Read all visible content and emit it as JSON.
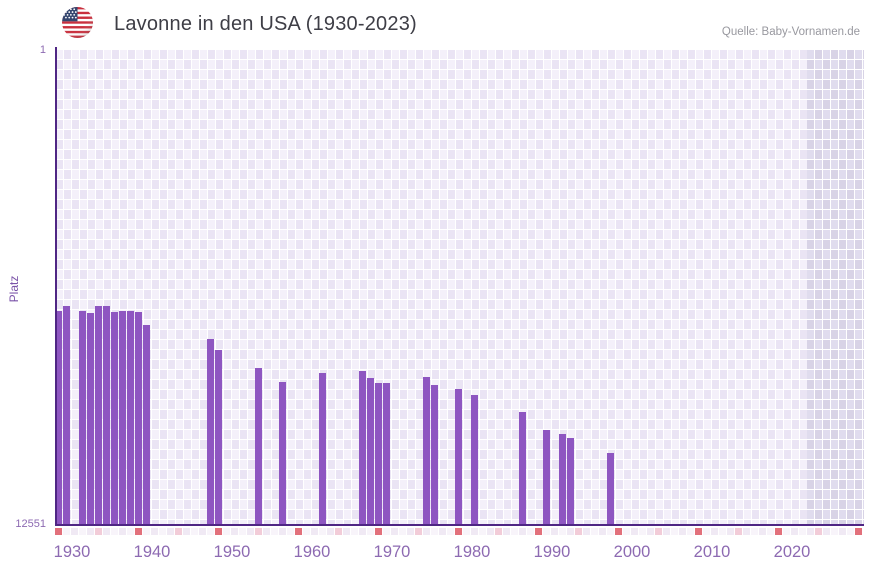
{
  "header": {
    "title": "Lavonne in den USA (1930-2023)",
    "source": "Quelle: Baby-Vornamen.de",
    "flag_icon": "us-flag-icon"
  },
  "chart_data": {
    "type": "bar",
    "title": "Lavonne in den USA (1930-2023)",
    "xlabel": "",
    "ylabel": "Platz",
    "y_axis": {
      "top_tick_label": "1",
      "bottom_tick_label": "12551",
      "min_rank": 1,
      "max_rank": 12551,
      "inverted": true,
      "scale": "linear"
    },
    "x_axis": {
      "plot_start_year": 1930,
      "plot_end_year": 2030,
      "data_range_label": "1930-2023",
      "future_region_start_year": 2024,
      "tick_labels": [
        "1930",
        "1940",
        "1950",
        "1960",
        "1970",
        "1980",
        "1990",
        "2000",
        "2010",
        "2020"
      ],
      "decade_marker_interval": 10,
      "half_decade_marker_interval": 5
    },
    "grid": "checkered-background",
    "legend": "none",
    "series": [
      {
        "name": "Platz",
        "points": [
          {
            "year": 1930,
            "rank": 6910
          },
          {
            "year": 1931,
            "rank": 6790
          },
          {
            "year": 1933,
            "rank": 6900
          },
          {
            "year": 1934,
            "rank": 6960
          },
          {
            "year": 1935,
            "rank": 6780
          },
          {
            "year": 1936,
            "rank": 6770
          },
          {
            "year": 1937,
            "rank": 6930
          },
          {
            "year": 1938,
            "rank": 6900
          },
          {
            "year": 1939,
            "rank": 6910
          },
          {
            "year": 1940,
            "rank": 6940
          },
          {
            "year": 1941,
            "rank": 7290
          },
          {
            "year": 1949,
            "rank": 7660
          },
          {
            "year": 1950,
            "rank": 7940
          },
          {
            "year": 1955,
            "rank": 8430
          },
          {
            "year": 1958,
            "rank": 8800
          },
          {
            "year": 1963,
            "rank": 8560
          },
          {
            "year": 1968,
            "rank": 8490
          },
          {
            "year": 1969,
            "rank": 8690
          },
          {
            "year": 1970,
            "rank": 8820
          },
          {
            "year": 1971,
            "rank": 8810
          },
          {
            "year": 1976,
            "rank": 8650
          },
          {
            "year": 1977,
            "rank": 8870
          },
          {
            "year": 1980,
            "rank": 8980
          },
          {
            "year": 1982,
            "rank": 9140
          },
          {
            "year": 1988,
            "rank": 9590
          },
          {
            "year": 1991,
            "rank": 10060
          },
          {
            "year": 1993,
            "rank": 10180
          },
          {
            "year": 1994,
            "rank": 10280
          },
          {
            "year": 1999,
            "rank": 10660
          }
        ]
      }
    ],
    "colors": {
      "bar": "#8e56c1",
      "axis": "#4f2684",
      "tick_label": "#8d6ab2",
      "ylabel": "#7a52a8",
      "background_cell_light": "#f4f0fa",
      "background_cell_dark": "#eae4f4",
      "future_cell_light": "#e0dcee",
      "future_cell_dark": "#d8d3e6",
      "decade_marker": "#e2707b",
      "half_decade_marker": "#f2ccd8",
      "title_text": "#3e3e46",
      "source_text": "#98989f"
    }
  }
}
